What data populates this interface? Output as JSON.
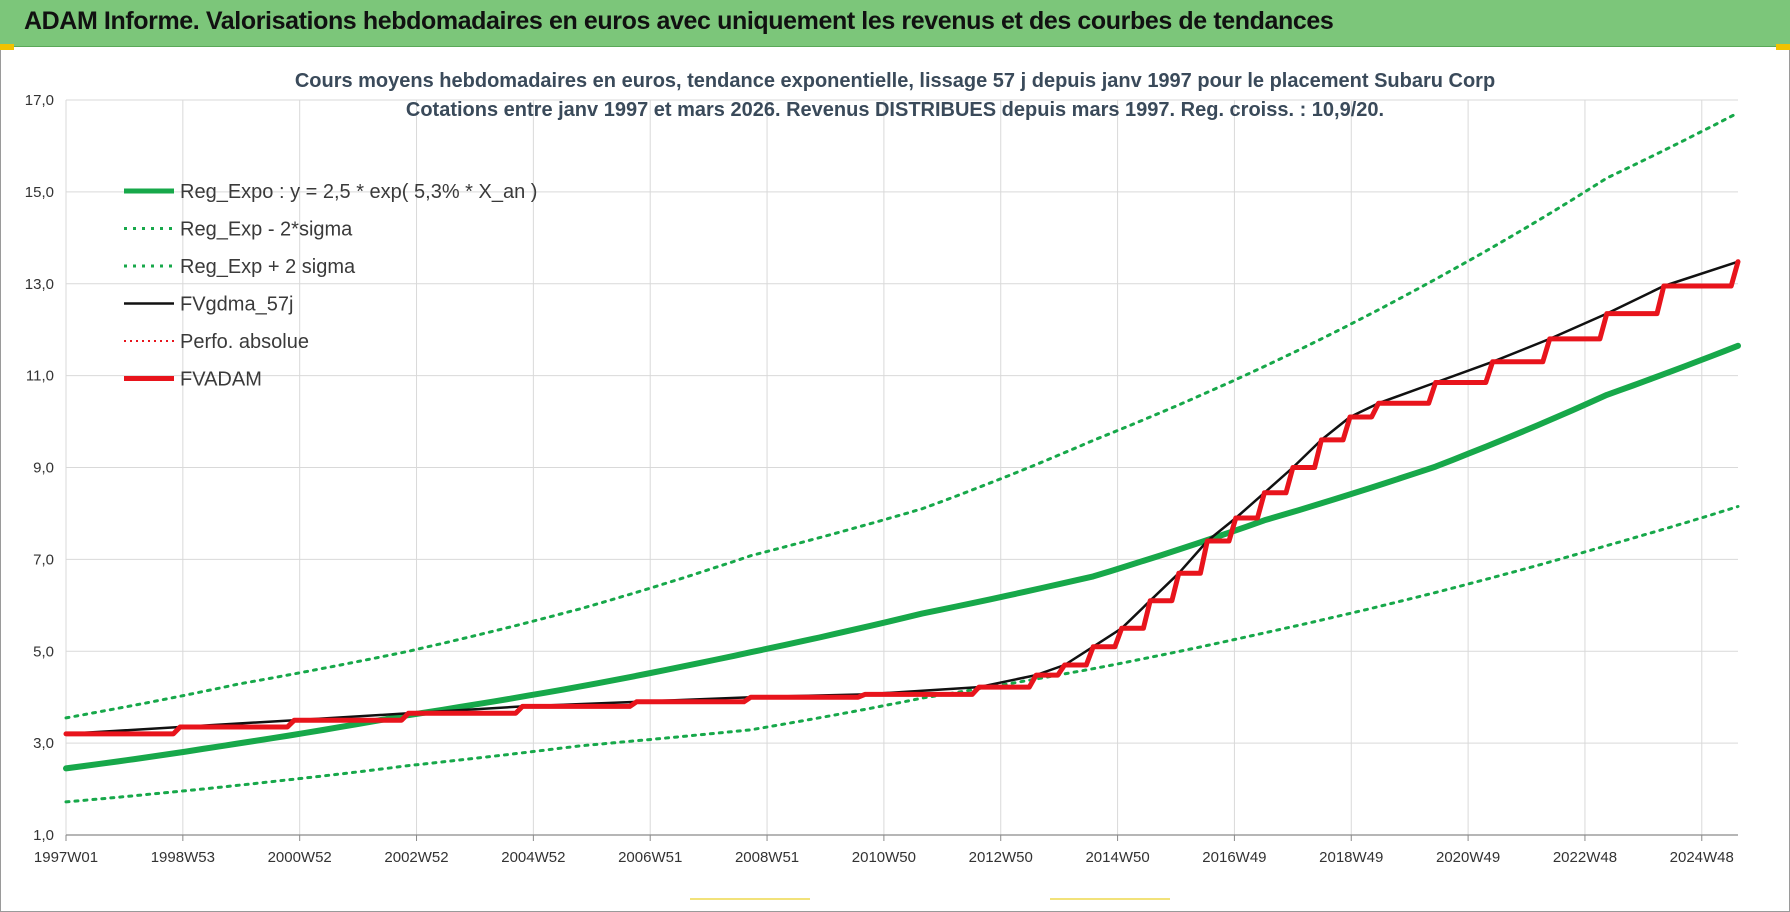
{
  "header": {
    "title": "ADAM Informe. Valorisations hebdomadaires en euros avec uniquement les revenus et des courbes de tendances"
  },
  "colors": {
    "header_bg": "#7cc67a",
    "reg_green": "#17a84a",
    "fvadam_red": "#e8141c",
    "fvgdma_black": "#111111",
    "perfo_red": "#e8141c",
    "grid": "#d9d9d9"
  },
  "chart_data": {
    "type": "line",
    "title": [
      "Cours moyens hebdomadaires en euros, tendance exponentielle, lissage 57 j depuis janv 1997  pour le placement Subaru Corp",
      "Cotations entre janv 1997 et mars 2026. Revenus DISTRIBUES depuis mars 1997. Reg. croiss. : 10,9/20."
    ],
    "x_tick_labels": [
      "1997W01",
      "1998W53",
      "2000W52",
      "2002W52",
      "2004W52",
      "2006W51",
      "2008W51",
      "2010W50",
      "2012W50",
      "2014W50",
      "2016W49",
      "2018W49",
      "2020W49",
      "2022W48",
      "2024W48"
    ],
    "x_range": [
      1997.0,
      2026.3
    ],
    "ylim": [
      1.0,
      17.0
    ],
    "y_tick_labels": [
      "1,0",
      "3,0",
      "5,0",
      "7,0",
      "9,0",
      "11,0",
      "13,0",
      "15,0",
      "17,0"
    ],
    "grid": true,
    "legend_position": "top-left",
    "series": [
      {
        "name": "Reg_Expo : y = 2,5 * exp( 5,3% *  X_an )",
        "style": "thick-solid-green",
        "x": [
          1997,
          2000,
          2003,
          2006,
          2009,
          2012,
          2015,
          2018,
          2021,
          2024,
          2026.3
        ],
        "y": [
          2.45,
          2.99,
          3.61,
          4.23,
          4.98,
          5.82,
          6.63,
          7.85,
          9.02,
          10.58,
          11.65
        ]
      },
      {
        "name": "Reg_Exp - 2*sigma",
        "style": "dotted-green",
        "x": [
          1997,
          2000,
          2003,
          2006,
          2009,
          2012,
          2015,
          2018,
          2021,
          2024,
          2026.3
        ],
        "y": [
          1.72,
          2.08,
          2.51,
          2.94,
          3.29,
          3.98,
          4.62,
          5.4,
          6.28,
          7.3,
          8.15
        ]
      },
      {
        "name": "Reg_Exp + 2 sigma",
        "style": "dotted-green",
        "x": [
          1997,
          2000,
          2003,
          2006,
          2009,
          2012,
          2015,
          2018,
          2021,
          2024,
          2026.3
        ],
        "y": [
          3.55,
          4.28,
          5.0,
          5.92,
          7.08,
          8.1,
          9.59,
          11.2,
          13.1,
          15.3,
          16.72
        ]
      },
      {
        "name": "FVgdma_57j",
        "style": "solid-black",
        "x": [
          1997.0,
          1999.0,
          2001.0,
          2003.0,
          2005.0,
          2007.0,
          2009.0,
          2011.0,
          2013.0,
          2014.0,
          2014.5,
          2015.0,
          2015.5,
          2016.0,
          2016.5,
          2017.0,
          2017.5,
          2018.0,
          2018.5,
          2019.0,
          2019.5,
          2020.0,
          2021.0,
          2022.0,
          2023.0,
          2024.0,
          2025.0,
          2026.3
        ],
        "y": [
          3.2,
          3.35,
          3.5,
          3.65,
          3.8,
          3.9,
          4.0,
          4.06,
          4.22,
          4.48,
          4.7,
          5.1,
          5.5,
          6.1,
          6.7,
          7.4,
          7.9,
          8.45,
          9.0,
          9.6,
          10.1,
          10.4,
          10.85,
          11.3,
          11.8,
          12.35,
          12.95,
          13.48
        ]
      },
      {
        "name": "Perfo. absolue",
        "style": "dotted-red",
        "x": [
          1997.0,
          2026.3
        ],
        "y": [
          3.2,
          13.48
        ]
      },
      {
        "name": "FVADAM",
        "style": "thick-solid-red-stepped",
        "x": [
          1997.0,
          1999.0,
          2001.0,
          2003.0,
          2005.0,
          2007.0,
          2009.0,
          2011.0,
          2013.0,
          2014.0,
          2014.5,
          2015.0,
          2015.5,
          2016.0,
          2016.5,
          2017.0,
          2017.5,
          2018.0,
          2018.5,
          2019.0,
          2019.5,
          2020.0,
          2021.0,
          2022.0,
          2023.0,
          2024.0,
          2025.0,
          2026.3
        ],
        "y": [
          3.2,
          3.35,
          3.5,
          3.65,
          3.8,
          3.9,
          4.0,
          4.06,
          4.22,
          4.48,
          4.7,
          5.1,
          5.5,
          6.1,
          6.7,
          7.4,
          7.9,
          8.45,
          9.0,
          9.6,
          10.1,
          10.4,
          10.85,
          11.3,
          11.8,
          12.35,
          12.95,
          13.48
        ]
      }
    ]
  }
}
